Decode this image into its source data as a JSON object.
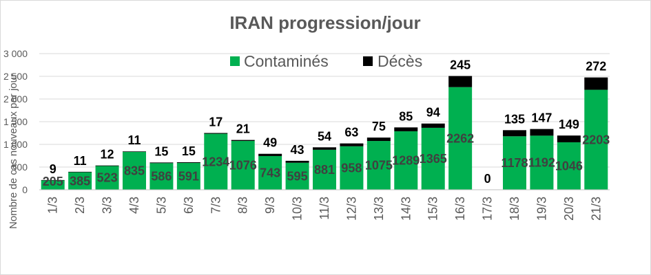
{
  "chart_data": {
    "type": "bar",
    "stacked": true,
    "title": "IRAN progression/jour",
    "ylabel": "Nombre de cas nouveaux par jour",
    "xlabel": "",
    "ylim": [
      0,
      3000
    ],
    "yticks": [
      "0",
      "500",
      "1 000",
      "1 500",
      "2 000",
      "2 500",
      "3 000"
    ],
    "grid": true,
    "legend_position": "top-right",
    "categories": [
      "1/3",
      "2/3",
      "3/3",
      "4/3",
      "5/3",
      "6/3",
      "7/3",
      "8/3",
      "9/3",
      "10/3",
      "11/3",
      "12/3",
      "13/3",
      "14/3",
      "15/3",
      "16/3",
      "17/3",
      "18/3",
      "19/3",
      "20/3",
      "21/3"
    ],
    "series": [
      {
        "name": "Contaminés",
        "color": "#00b050",
        "values": [
          205,
          385,
          523,
          835,
          586,
          591,
          1234,
          1076,
          743,
          595,
          881,
          958,
          1075,
          1289,
          1365,
          2262,
          0,
          1178,
          1192,
          1046,
          2203
        ]
      },
      {
        "name": "Décès",
        "color": "#000000",
        "values": [
          9,
          11,
          12,
          11,
          15,
          15,
          17,
          21,
          49,
          43,
          54,
          63,
          75,
          85,
          94,
          245,
          0,
          135,
          147,
          149,
          272
        ]
      }
    ]
  }
}
